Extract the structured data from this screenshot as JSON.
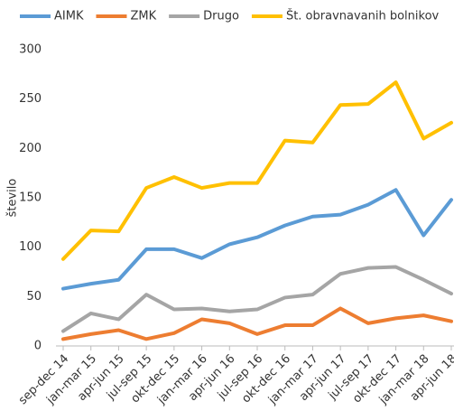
{
  "chart_data": {
    "type": "line",
    "categories": [
      "sep-dec 14",
      "jan-mar 15",
      "apr-jun 15",
      "jul-sep 15",
      "okt-dec 15",
      "jan-mar 16",
      "apr-jun 16",
      "jul-sep 16",
      "okt-dec 16",
      "jan-mar 17",
      "apr-jun 17",
      "jul-sep 17",
      "okt-dec 17",
      "jan-mar 18",
      "apr-jun 18"
    ],
    "series": [
      {
        "name": "AIMK",
        "color": "#5b9bd5",
        "values": [
          58,
          63,
          67,
          98,
          98,
          89,
          103,
          110,
          122,
          131,
          133,
          143,
          158,
          112,
          148
        ]
      },
      {
        "name": "ZMK",
        "color": "#ed7d31",
        "values": [
          7,
          12,
          16,
          7,
          13,
          27,
          23,
          12,
          21,
          21,
          38,
          23,
          28,
          31,
          25
        ]
      },
      {
        "name": "Drugo",
        "color": "#a5a5a5",
        "values": [
          15,
          33,
          27,
          52,
          37,
          38,
          35,
          37,
          49,
          52,
          73,
          79,
          80,
          67,
          53
        ]
      },
      {
        "name": "Št. obravnavanih bolnikov",
        "color": "#ffc000",
        "values": [
          88,
          117,
          116,
          160,
          171,
          160,
          165,
          165,
          208,
          206,
          244,
          245,
          267,
          210,
          226
        ]
      }
    ],
    "ylabel": "število",
    "ylim": [
      0,
      300
    ],
    "yticks": [
      0,
      50,
      100,
      150,
      200,
      250,
      300
    ],
    "grid": false,
    "legend": "top"
  }
}
